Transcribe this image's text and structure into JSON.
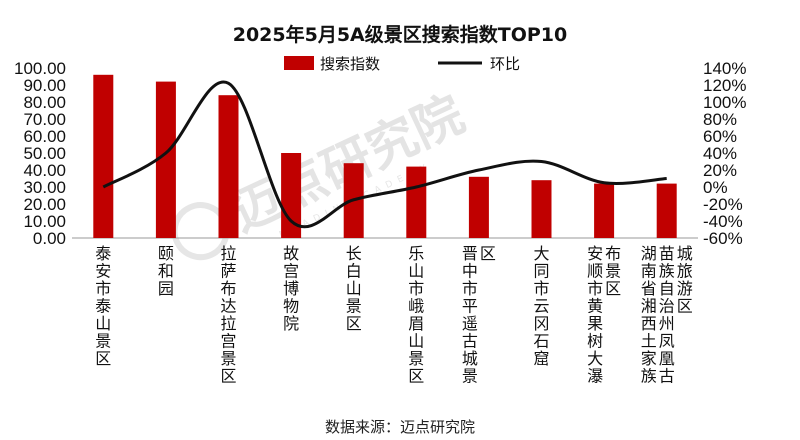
{
  "chart_data": {
    "type": "bar+line",
    "title": "2025年5月5A级景区搜索指数TOP10",
    "categories": [
      "泰安市泰山景区",
      "颐和园",
      "拉萨布达拉宫景区",
      "故宫博物院",
      "长白山景区",
      "乐山市峨眉山景区",
      "晋中市平遥古城景区",
      "大同市云冈石窟",
      "安顺市黄果树大瀑布景区",
      "湘西土家族苗族自治州凤凰古城旅游区"
    ],
    "category_labels": [
      [
        "泰安市泰山景区"
      ],
      [
        "颐和园"
      ],
      [
        "拉萨布达拉宫景区"
      ],
      [
        "故宫博物院"
      ],
      [
        "长白山景区"
      ],
      [
        "乐山市峨眉山景区"
      ],
      [
        "晋中市平遥古城景",
        "区"
      ],
      [
        "大同市云冈石窟"
      ],
      [
        "安顺市黄果树大瀑",
        "布景区"
      ],
      [
        "湖南省湘西土家族",
        "苗族自治州凤凰古",
        "城旅游区"
      ]
    ],
    "series": [
      {
        "name": "搜索指数",
        "type": "bar",
        "axis": "left",
        "color": "#c00000",
        "values": [
          96,
          92,
          84,
          50,
          44,
          42,
          36,
          34,
          32,
          32
        ]
      },
      {
        "name": "环比",
        "type": "line",
        "axis": "right",
        "color": "#111111",
        "unit": "%",
        "values": [
          0,
          40,
          122,
          -40,
          -15,
          0,
          20,
          30,
          5,
          10
        ]
      }
    ],
    "y_left": {
      "min": 0,
      "max": 100,
      "step": 10,
      "ticks": [
        "0.00",
        "10.00",
        "20.00",
        "30.00",
        "40.00",
        "50.00",
        "60.00",
        "70.00",
        "80.00",
        "90.00",
        "100.00"
      ]
    },
    "y_right": {
      "min": -60,
      "max": 140,
      "step": 20,
      "ticks": [
        "-60%",
        "-40%",
        "-20%",
        "0%",
        "20%",
        "40%",
        "60%",
        "80%",
        "100%",
        "120%",
        "140%"
      ]
    },
    "legend_position": "top-center"
  },
  "watermark": {
    "main": "迈点研究院",
    "sub": "MEADIN ACADEMY"
  },
  "source": "数据来源：迈点研究院"
}
